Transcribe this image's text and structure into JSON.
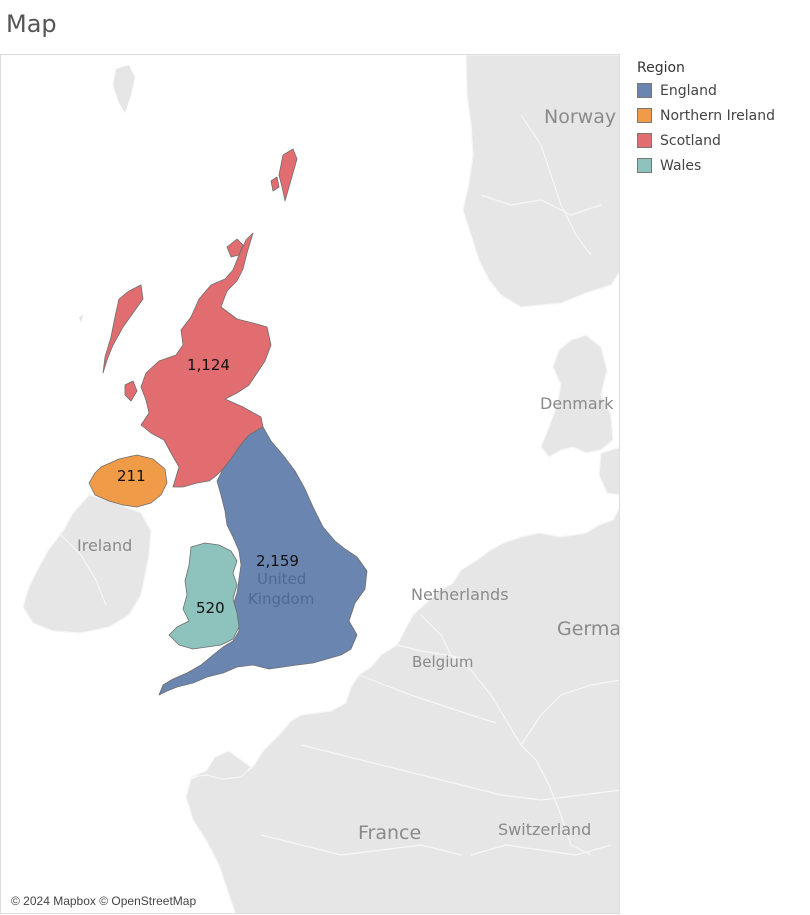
{
  "title": "Map",
  "legend": {
    "title": "Region",
    "items": [
      {
        "label": "England",
        "color": "#6a86b0"
      },
      {
        "label": "Northern Ireland",
        "color": "#f09b48"
      },
      {
        "label": "Scotland",
        "color": "#e26d70"
      },
      {
        "label": "Wales",
        "color": "#8dc2bd"
      }
    ]
  },
  "regions": {
    "england": {
      "name": "England",
      "value": "2,159",
      "color": "#6a86b0"
    },
    "northern_ireland": {
      "name": "Northern Ireland",
      "value": "211",
      "color": "#f09b48"
    },
    "scotland": {
      "name": "Scotland",
      "value": "1,124",
      "color": "#e26d70"
    },
    "wales": {
      "name": "Wales",
      "value": "520",
      "color": "#8dc2bd"
    }
  },
  "countries": {
    "norway": "Norway",
    "denmark": "Denmark",
    "ireland": "Ireland",
    "uk": "United Kingdom",
    "netherlands": "Netherlands",
    "germany": "Germa",
    "belgium": "Belgium",
    "france": "France",
    "switzerland": "Switzerland"
  },
  "attribution": "© 2024 Mapbox © OpenStreetMap"
}
